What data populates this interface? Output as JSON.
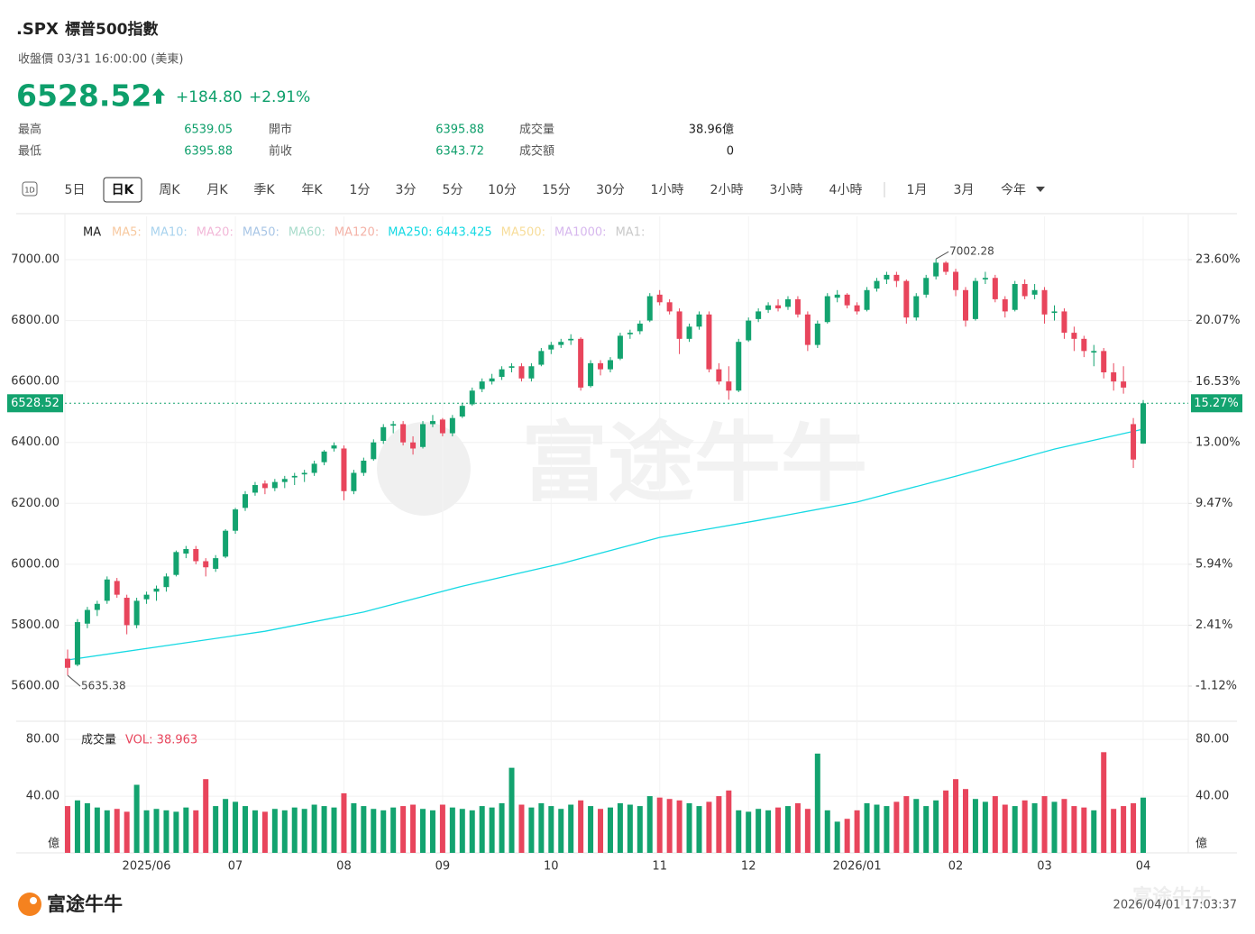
{
  "header": {
    "symbol": ".SPX",
    "name": "標普500指數",
    "status": "收盤價 03/31 16:00:00 (美東)",
    "price": "6528.52",
    "change": "+184.80",
    "change_pct": "+2.91%",
    "stats": [
      {
        "label": "最高",
        "value": "6539.05"
      },
      {
        "label": "最低",
        "value": "6395.88"
      },
      {
        "label": "開市",
        "value": "6395.88"
      },
      {
        "label": "前收",
        "value": "6343.72"
      },
      {
        "label": "成交量",
        "value": "38.96億"
      },
      {
        "label": "成交額",
        "value": "0"
      }
    ]
  },
  "tabs": {
    "items": [
      "1D",
      "5日",
      "日K",
      "周K",
      "月K",
      "季K",
      "年K",
      "1分",
      "3分",
      "5分",
      "10分",
      "15分",
      "30分",
      "1小時",
      "2小時",
      "3小時",
      "4小時",
      "1月",
      "3月",
      "今年"
    ],
    "active": 2
  },
  "watermark": "富途牛牛",
  "footer": {
    "brand": "富途牛牛",
    "timestamp": "2026/04/01 17:03:37"
  },
  "chart_data": [
    {
      "type": "candlestick",
      "up_color": "#13a36f",
      "down_color": "#e8455c",
      "categories": [
        null,
        null,
        null,
        null,
        null,
        null,
        null,
        null,
        "2025/06",
        null,
        null,
        null,
        null,
        null,
        null,
        null,
        null,
        "07",
        null,
        null,
        null,
        null,
        null,
        null,
        null,
        null,
        null,
        null,
        "08",
        null,
        null,
        null,
        null,
        null,
        null,
        null,
        null,
        null,
        "09",
        null,
        null,
        null,
        null,
        null,
        null,
        null,
        null,
        null,
        null,
        "10",
        null,
        null,
        null,
        null,
        null,
        null,
        null,
        null,
        null,
        null,
        "11",
        null,
        null,
        null,
        null,
        null,
        null,
        null,
        null,
        "12",
        null,
        null,
        null,
        null,
        null,
        null,
        null,
        null,
        null,
        null,
        "2026/01",
        null,
        null,
        null,
        null,
        null,
        null,
        null,
        null,
        null,
        "02",
        null,
        null,
        null,
        null,
        null,
        null,
        null,
        null,
        "03",
        null,
        null,
        null,
        null,
        null,
        null,
        null,
        null,
        null,
        "04"
      ],
      "ohlc": [
        [
          5690,
          5720,
          5635.38,
          5660
        ],
        [
          5670,
          5820,
          5665,
          5810
        ],
        [
          5805,
          5860,
          5790,
          5850
        ],
        [
          5850,
          5880,
          5830,
          5870
        ],
        [
          5880,
          5960,
          5870,
          5950
        ],
        [
          5945,
          5955,
          5890,
          5900
        ],
        [
          5890,
          5900,
          5770,
          5800
        ],
        [
          5800,
          5890,
          5790,
          5880
        ],
        [
          5885,
          5910,
          5870,
          5900
        ],
        [
          5910,
          5930,
          5880,
          5920
        ],
        [
          5925,
          5970,
          5910,
          5960
        ],
        [
          5965,
          6045,
          5960,
          6040
        ],
        [
          6035,
          6060,
          6020,
          6050
        ],
        [
          6050,
          6060,
          6000,
          6010
        ],
        [
          6010,
          6020,
          5960,
          5990
        ],
        [
          5985,
          6030,
          5975,
          6020
        ],
        [
          6025,
          6115,
          6020,
          6110
        ],
        [
          6110,
          6185,
          6100,
          6180
        ],
        [
          6185,
          6240,
          6175,
          6230
        ],
        [
          6235,
          6270,
          6225,
          6260
        ],
        [
          6265,
          6275,
          6230,
          6250
        ],
        [
          6250,
          6280,
          6240,
          6270
        ],
        [
          6270,
          6290,
          6250,
          6280
        ],
        [
          6285,
          6300,
          6260,
          6290
        ],
        [
          6295,
          6310,
          6270,
          6300
        ],
        [
          6300,
          6340,
          6290,
          6330
        ],
        [
          6335,
          6375,
          6325,
          6370
        ],
        [
          6380,
          6400,
          6370,
          6390
        ],
        [
          6380,
          6390,
          6210,
          6240
        ],
        [
          6240,
          6310,
          6230,
          6300
        ],
        [
          6300,
          6350,
          6290,
          6340
        ],
        [
          6345,
          6410,
          6340,
          6400
        ],
        [
          6405,
          6460,
          6395,
          6450
        ],
        [
          6455,
          6470,
          6430,
          6460
        ],
        [
          6460,
          6470,
          6390,
          6400
        ],
        [
          6400,
          6420,
          6360,
          6380
        ],
        [
          6385,
          6470,
          6380,
          6460
        ],
        [
          6460,
          6490,
          6450,
          6470
        ],
        [
          6475,
          6480,
          6420,
          6430
        ],
        [
          6430,
          6490,
          6420,
          6480
        ],
        [
          6485,
          6530,
          6480,
          6520
        ],
        [
          6525,
          6580,
          6520,
          6570
        ],
        [
          6575,
          6610,
          6565,
          6600
        ],
        [
          6600,
          6625,
          6590,
          6610
        ],
        [
          6615,
          6650,
          6605,
          6640
        ],
        [
          6645,
          6660,
          6630,
          6650
        ],
        [
          6650,
          6660,
          6600,
          6610
        ],
        [
          6610,
          6660,
          6600,
          6650
        ],
        [
          6655,
          6710,
          6650,
          6700
        ],
        [
          6705,
          6730,
          6690,
          6720
        ],
        [
          6720,
          6740,
          6710,
          6730
        ],
        [
          6735,
          6755,
          6720,
          6740
        ],
        [
          6740,
          6745,
          6570,
          6580
        ],
        [
          6585,
          6670,
          6580,
          6660
        ],
        [
          6660,
          6670,
          6620,
          6640
        ],
        [
          6640,
          6680,
          6630,
          6670
        ],
        [
          6675,
          6760,
          6670,
          6750
        ],
        [
          6755,
          6770,
          6740,
          6760
        ],
        [
          6765,
          6800,
          6755,
          6790
        ],
        [
          6800,
          6890,
          6795,
          6880
        ],
        [
          6885,
          6900,
          6850,
          6860
        ],
        [
          6860,
          6870,
          6820,
          6830
        ],
        [
          6830,
          6840,
          6690,
          6740
        ],
        [
          6740,
          6790,
          6730,
          6780
        ],
        [
          6780,
          6830,
          6770,
          6820
        ],
        [
          6820,
          6830,
          6630,
          6640
        ],
        [
          6640,
          6660,
          6590,
          6600
        ],
        [
          6600,
          6650,
          6540,
          6570
        ],
        [
          6570,
          6740,
          6565,
          6730
        ],
        [
          6735,
          6810,
          6730,
          6800
        ],
        [
          6805,
          6840,
          6795,
          6830
        ],
        [
          6835,
          6860,
          6825,
          6850
        ],
        [
          6850,
          6870,
          6830,
          6840
        ],
        [
          6845,
          6880,
          6835,
          6870
        ],
        [
          6870,
          6880,
          6810,
          6820
        ],
        [
          6820,
          6830,
          6700,
          6720
        ],
        [
          6720,
          6800,
          6710,
          6790
        ],
        [
          6795,
          6890,
          6790,
          6880
        ],
        [
          6875,
          6900,
          6860,
          6885
        ],
        [
          6885,
          6890,
          6840,
          6850
        ],
        [
          6850,
          6860,
          6820,
          6830
        ],
        [
          6835,
          6910,
          6830,
          6900
        ],
        [
          6905,
          6940,
          6895,
          6930
        ],
        [
          6935,
          6960,
          6920,
          6950
        ],
        [
          6950,
          6960,
          6910,
          6930
        ],
        [
          6930,
          6935,
          6790,
          6810
        ],
        [
          6810,
          6890,
          6800,
          6880
        ],
        [
          6885,
          6950,
          6875,
          6940
        ],
        [
          6945,
          7002.28,
          6935,
          6990
        ],
        [
          6990,
          6995,
          6950,
          6960
        ],
        [
          6960,
          6970,
          6880,
          6900
        ],
        [
          6900,
          6910,
          6780,
          6800
        ],
        [
          6805,
          6940,
          6800,
          6930
        ],
        [
          6935,
          6960,
          6920,
          6940
        ],
        [
          6940,
          6950,
          6860,
          6870
        ],
        [
          6870,
          6880,
          6810,
          6830
        ],
        [
          6835,
          6930,
          6830,
          6920
        ],
        [
          6920,
          6935,
          6870,
          6880
        ],
        [
          6885,
          6920,
          6870,
          6900
        ],
        [
          6900,
          6910,
          6790,
          6820
        ],
        [
          6825,
          6850,
          6800,
          6830
        ],
        [
          6830,
          6840,
          6740,
          6760
        ],
        [
          6760,
          6780,
          6700,
          6740
        ],
        [
          6740,
          6750,
          6680,
          6700
        ],
        [
          6695,
          6720,
          6650,
          6700
        ],
        [
          6700,
          6710,
          6610,
          6630
        ],
        [
          6630,
          6660,
          6570,
          6600
        ],
        [
          6600,
          6650,
          6560,
          6580
        ],
        [
          6460,
          6480,
          6316,
          6343.72
        ],
        [
          6395.88,
          6539.05,
          6395.88,
          6528.52
        ]
      ],
      "ylim": [
        5500,
        7100
      ],
      "yticks": [
        {
          "value": 5600,
          "label": "5600.00"
        },
        {
          "value": 5800,
          "label": "5800.00"
        },
        {
          "value": 6000,
          "label": "6000.00"
        },
        {
          "value": 6200,
          "label": "6200.00"
        },
        {
          "value": 6400,
          "label": "6400.00"
        },
        {
          "value": 6600,
          "label": "6600.00"
        },
        {
          "value": 6800,
          "label": "6800.00"
        },
        {
          "value": 7000,
          "label": "7000.00"
        }
      ],
      "y2lim": [
        -2.886,
        25.366
      ],
      "y2ticks": [
        {
          "value": -1.12,
          "label": "-1.12%"
        },
        {
          "value": 2.41,
          "label": "2.41%"
        },
        {
          "value": 5.94,
          "label": "5.94%"
        },
        {
          "value": 9.47,
          "label": "9.47%"
        },
        {
          "value": 13.0,
          "label": "13.00%"
        },
        {
          "value": 16.53,
          "label": "16.53%"
        },
        {
          "value": 20.07,
          "label": "20.07%"
        },
        {
          "value": 23.6,
          "label": "23.60%"
        }
      ],
      "ma_legend": {
        "title": "MA",
        "items": [
          {
            "label": "MA5:",
            "color": "#f7c9a0"
          },
          {
            "label": "MA10:",
            "color": "#a9d3ee"
          },
          {
            "label": "MA20:",
            "color": "#f2b8d8"
          },
          {
            "label": "MA50:",
            "color": "#a9c6e6"
          },
          {
            "label": "MA60:",
            "color": "#a8dccb"
          },
          {
            "label": "MA120:",
            "color": "#f4b3a8"
          },
          {
            "label": "MA250: 6443.425",
            "color": "#16d9e3"
          },
          {
            "label": "MA500:",
            "color": "#f7dd9a"
          },
          {
            "label": "MA1000:",
            "color": "#d7b8ee"
          },
          {
            "label": "MA1:",
            "color": "#c9c9c9"
          }
        ]
      },
      "ma250": {
        "color": "#16d9e3",
        "x": [
          0,
          10,
          20,
          30,
          40,
          50,
          60,
          70,
          80,
          90,
          100,
          109
        ],
        "values": [
          5686,
          5733,
          5780,
          5843,
          5928,
          6002,
          6088,
          6144,
          6204,
          6289,
          6378,
          6443.425
        ]
      },
      "annotations": [
        {
          "index": 88,
          "value": 7002.28,
          "label": "7002.28"
        },
        {
          "index": 0,
          "value": 5635.38,
          "label": "5635.38"
        }
      ],
      "last": {
        "value": 6528.52,
        "label": "6528.52",
        "pct_label": "15.27%",
        "color": "#13a36f"
      }
    },
    {
      "type": "bar",
      "title": "成交量",
      "legend": "VOL: 38.963",
      "unit": "億",
      "values": [
        33,
        37,
        35,
        32,
        30,
        31,
        29,
        48,
        30,
        31,
        30,
        29,
        32,
        30,
        52,
        33,
        38,
        36,
        33,
        30,
        29,
        31,
        30,
        32,
        31,
        34,
        33,
        32,
        42,
        35,
        33,
        31,
        30,
        32,
        33,
        34,
        31,
        30,
        34,
        32,
        31,
        30,
        33,
        32,
        35,
        60,
        34,
        32,
        35,
        33,
        31,
        34,
        37,
        33,
        31,
        32,
        35,
        34,
        33,
        40,
        39,
        38,
        37,
        35,
        33,
        36,
        40,
        44,
        30,
        29,
        31,
        30,
        32,
        33,
        35,
        31,
        70,
        30,
        22,
        24,
        30,
        35,
        34,
        33,
        36,
        40,
        38,
        33,
        37,
        44,
        52,
        45,
        38,
        36,
        40,
        34,
        33,
        37,
        35,
        40,
        36,
        38,
        33,
        32,
        30,
        71,
        31,
        33,
        35,
        38.963
      ],
      "ylim": [
        0,
        89
      ],
      "yticks": [
        {
          "value": 40,
          "label": "40.00"
        },
        {
          "value": 80,
          "label": "80.00"
        }
      ]
    }
  ]
}
